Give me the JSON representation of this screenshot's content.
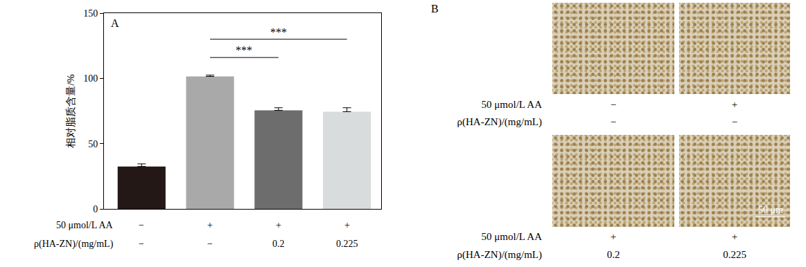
{
  "chart_data": {
    "type": "bar",
    "panel": "A",
    "categories": [
      [
        "−",
        "−"
      ],
      [
        "+",
        "−"
      ],
      [
        "+",
        "0.2"
      ],
      [
        "+",
        "0.225"
      ]
    ],
    "category_rows": [
      "50 μmol/L AA",
      "ρ(HA-ZN)/(mg/mL)"
    ],
    "values": [
      32.5,
      101.5,
      75.5,
      74.5
    ],
    "errors": [
      2,
      1,
      2,
      3
    ],
    "colors": [
      "#231815",
      "#a9a9a9",
      "#6d6d6d",
      "#d9dcdc"
    ],
    "y_label": "相对脂质含量/%",
    "ylim": [
      0,
      150
    ],
    "yticks": [
      0,
      50,
      100,
      150
    ],
    "grid": false,
    "annotations": [
      {
        "text": "***",
        "from": 1,
        "to": 2,
        "y": 116
      },
      {
        "text": "***",
        "from": 1,
        "to": 3,
        "y": 130
      }
    ]
  },
  "panel_b": {
    "label": "B",
    "row_labels": [
      "50 μmol/L AA",
      "ρ(HA-ZN)/(mg/mL)"
    ],
    "images": [
      {
        "conditions": [
          "−",
          "−"
        ]
      },
      {
        "conditions": [
          "+",
          "−"
        ]
      },
      {
        "conditions": [
          "+",
          "0.2"
        ]
      },
      {
        "conditions": [
          "+",
          "0.225"
        ]
      }
    ],
    "scale_bar": "50 μm"
  }
}
